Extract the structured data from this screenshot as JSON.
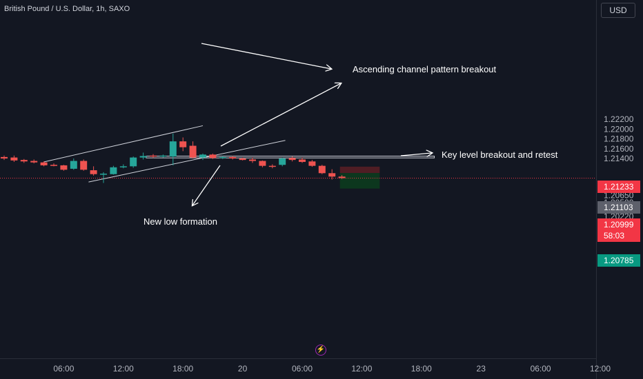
{
  "header": {
    "symbol_title": "British Pound / U.S. Dollar, 1h, SAXO",
    "currency": "USD"
  },
  "annotations": {
    "channel": "Ascending channel pattern breakout",
    "key_level": "Key level breakout and retest",
    "new_low": "New low formation"
  },
  "price_labels": {
    "stop": "1.21233",
    "entry": "1.21103",
    "current": "1.20999",
    "countdown": "58:03",
    "target": "1.20785"
  },
  "colors": {
    "background": "#131722",
    "up": "#26a69a",
    "down": "#ef5350",
    "annotation": "#ffffff",
    "stop_zone": "#5a1f24",
    "target_zone": "#0c3b1e",
    "current_price": "#f23645",
    "entry_label": "#5d606b",
    "target_label": "#089981",
    "flash_icon": "#9c27b0"
  },
  "chart_data": {
    "type": "candlestick",
    "symbol": "British Pound / U.S. Dollar",
    "interval": "1h",
    "source": "SAXO",
    "ylim": [
      1.2019,
      1.2231
    ],
    "grid": false,
    "y_ticks": [
      "1.22200",
      "1.22000",
      "1.21800",
      "1.21600",
      "1.21400",
      "1.21233",
      "1.21103",
      "1.20999",
      "1.20785",
      "1.20650",
      "1.20500",
      "1.20360",
      "1.20220"
    ],
    "x_ticks": [
      {
        "label": "06:00",
        "bar": 6
      },
      {
        "label": "12:00",
        "bar": 12
      },
      {
        "label": "18:00",
        "bar": 18
      },
      {
        "label": "20",
        "bar": 24
      },
      {
        "label": "06:00",
        "bar": 30
      },
      {
        "label": "12:00",
        "bar": 36
      },
      {
        "label": "18:00",
        "bar": 42
      },
      {
        "label": "23",
        "bar": 48
      },
      {
        "label": "06:00",
        "bar": 54
      },
      {
        "label": "12:00",
        "bar": 60
      }
    ],
    "candles": [
      {
        "bar": 0,
        "o": 1.2143,
        "h": 1.2146,
        "l": 1.2137,
        "c": 1.214
      },
      {
        "bar": 1,
        "o": 1.2142,
        "h": 1.2146,
        "l": 1.2133,
        "c": 1.2136
      },
      {
        "bar": 2,
        "o": 1.2137,
        "h": 1.2139,
        "l": 1.2131,
        "c": 1.2134
      },
      {
        "bar": 3,
        "o": 1.2135,
        "h": 1.2138,
        "l": 1.213,
        "c": 1.2132
      },
      {
        "bar": 4,
        "o": 1.2132,
        "h": 1.2134,
        "l": 1.2124,
        "c": 1.2126
      },
      {
        "bar": 5,
        "o": 1.2127,
        "h": 1.213,
        "l": 1.2124,
        "c": 1.2125
      },
      {
        "bar": 6,
        "o": 1.2126,
        "h": 1.2127,
        "l": 1.2115,
        "c": 1.2117
      },
      {
        "bar": 7,
        "o": 1.2119,
        "h": 1.214,
        "l": 1.2117,
        "c": 1.2135
      },
      {
        "bar": 8,
        "o": 1.2135,
        "h": 1.2138,
        "l": 1.2115,
        "c": 1.2117
      },
      {
        "bar": 9,
        "o": 1.2116,
        "h": 1.2124,
        "l": 1.2105,
        "c": 1.2108
      },
      {
        "bar": 10,
        "o": 1.2108,
        "h": 1.2112,
        "l": 1.209,
        "c": 1.2109
      },
      {
        "bar": 11,
        "o": 1.2108,
        "h": 1.2125,
        "l": 1.2107,
        "c": 1.2122
      },
      {
        "bar": 12,
        "o": 1.2122,
        "h": 1.2128,
        "l": 1.212,
        "c": 1.2124
      },
      {
        "bar": 13,
        "o": 1.2124,
        "h": 1.2144,
        "l": 1.2121,
        "c": 1.2142
      },
      {
        "bar": 14,
        "o": 1.2142,
        "h": 1.2152,
        "l": 1.2138,
        "c": 1.2145
      },
      {
        "bar": 15,
        "o": 1.2146,
        "h": 1.2149,
        "l": 1.2141,
        "c": 1.2144
      },
      {
        "bar": 16,
        "o": 1.2144,
        "h": 1.2148,
        "l": 1.2142,
        "c": 1.2146
      },
      {
        "bar": 17,
        "o": 1.2144,
        "h": 1.2191,
        "l": 1.2126,
        "c": 1.2175
      },
      {
        "bar": 18,
        "o": 1.2175,
        "h": 1.2183,
        "l": 1.2155,
        "c": 1.2163
      },
      {
        "bar": 19,
        "o": 1.2166,
        "h": 1.2175,
        "l": 1.214,
        "c": 1.2142
      },
      {
        "bar": 20,
        "o": 1.2142,
        "h": 1.215,
        "l": 1.2137,
        "c": 1.2148
      },
      {
        "bar": 21,
        "o": 1.2148,
        "h": 1.215,
        "l": 1.2139,
        "c": 1.2141
      },
      {
        "bar": 22,
        "o": 1.2142,
        "h": 1.2145,
        "l": 1.2139,
        "c": 1.2143
      },
      {
        "bar": 23,
        "o": 1.2143,
        "h": 1.2145,
        "l": 1.2138,
        "c": 1.214
      },
      {
        "bar": 24,
        "o": 1.214,
        "h": 1.2142,
        "l": 1.2136,
        "c": 1.2137
      },
      {
        "bar": 25,
        "o": 1.2138,
        "h": 1.2142,
        "l": 1.2131,
        "c": 1.2135
      },
      {
        "bar": 26,
        "o": 1.2135,
        "h": 1.2136,
        "l": 1.2122,
        "c": 1.2125
      },
      {
        "bar": 27,
        "o": 1.2125,
        "h": 1.2128,
        "l": 1.212,
        "c": 1.2124
      },
      {
        "bar": 28,
        "o": 1.2127,
        "h": 1.2142,
        "l": 1.2124,
        "c": 1.214
      },
      {
        "bar": 29,
        "o": 1.2141,
        "h": 1.2144,
        "l": 1.2134,
        "c": 1.2137
      },
      {
        "bar": 30,
        "o": 1.2138,
        "h": 1.2142,
        "l": 1.2131,
        "c": 1.2133
      },
      {
        "bar": 31,
        "o": 1.2134,
        "h": 1.2137,
        "l": 1.2123,
        "c": 1.2125
      },
      {
        "bar": 32,
        "o": 1.2125,
        "h": 1.2127,
        "l": 1.2108,
        "c": 1.211
      },
      {
        "bar": 33,
        "o": 1.211,
        "h": 1.2118,
        "l": 1.2097,
        "c": 1.2103
      },
      {
        "bar": 34,
        "o": 1.2103,
        "h": 1.2106,
        "l": 1.2098,
        "c": 1.21
      }
    ],
    "channel": {
      "upper": [
        {
          "bar": 4,
          "price": 1.2133
        },
        {
          "bar": 20,
          "price": 1.2207
        }
      ],
      "lower": [
        {
          "bar": 8.5,
          "price": 1.2092
        },
        {
          "bar": 28.3,
          "price": 1.2177
        }
      ]
    },
    "key_level": {
      "from_bar": 14.3,
      "to_bar": 43.3,
      "top": 1.21448,
      "bottom": 1.21412
    },
    "position": {
      "type": "short",
      "from_bar": 33.8,
      "to_bar": 37.8,
      "entry": 1.21103,
      "stop": 1.21233,
      "target": 1.20785
    },
    "current_price": 1.20999
  }
}
